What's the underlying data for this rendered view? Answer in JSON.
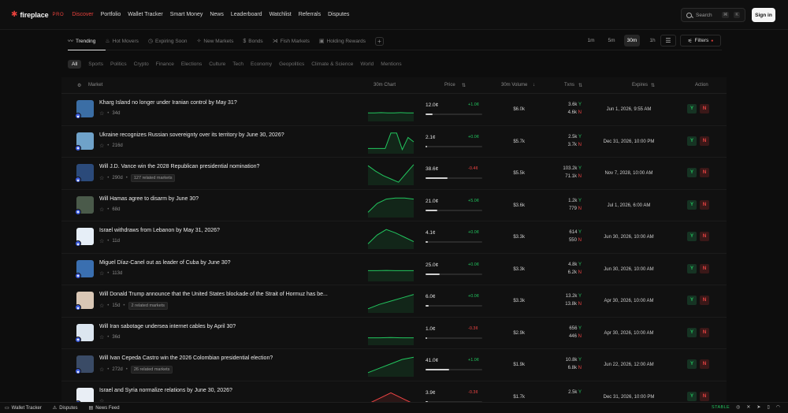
{
  "brand": {
    "name": "fireplace",
    "tier": "PRO",
    "accent": "#e8413c"
  },
  "nav": [
    "Discover",
    "Portfolio",
    "Wallet Tracker",
    "Smart Money",
    "News",
    "Leaderboard",
    "Watchlist",
    "Referrals",
    "Disputes"
  ],
  "search": {
    "placeholder": "Search",
    "shortcut_mod": "⌘",
    "shortcut_key": "K"
  },
  "signin_label": "Sign in",
  "subtabs": [
    "Trending",
    "Hot Movers",
    "Expiring Soon",
    "New Markets",
    "Bonds",
    "Fish Markets",
    "Holding Rewards"
  ],
  "timeframes": [
    "1m",
    "5m",
    "30m",
    "1h"
  ],
  "filters_label": "Filters",
  "categories": [
    "All",
    "Sports",
    "Politics",
    "Crypto",
    "Finance",
    "Elections",
    "Culture",
    "Tech",
    "Economy",
    "Geopolitics",
    "Climate & Science",
    "World",
    "Mentions"
  ],
  "columns": {
    "market": "Market",
    "chart": "30m Chart",
    "price": "Price",
    "volume": "30m Volume",
    "txns": "Txns",
    "expires": "Expires",
    "action": "Action"
  },
  "rows": [
    {
      "title": "Kharg Island no longer under Iranian control by May 31?",
      "age": "34d",
      "related": "",
      "price": "12.0¢",
      "change": "+1.0¢",
      "dir": "up",
      "price_fraction": 0.12,
      "volume": "$6.0k",
      "tx_yes": "3.6k",
      "tx_no": "4.6k",
      "expires": "Jun 1, 2026, 9:55 AM",
      "spark": [
        0.35,
        0.35,
        0.36,
        0.35,
        0.35,
        0.36,
        0.35,
        0.35
      ],
      "spark_color": "#22c55e",
      "thumb": "#3b6ea5"
    },
    {
      "title": "Ukraine recognizes Russian sovereignty over its territory by June 30, 2026?",
      "age": "216d",
      "related": "",
      "price": "2.1¢",
      "change": "+0.0¢",
      "dir": "up",
      "price_fraction": 0.021,
      "volume": "$5.7k",
      "tx_yes": "2.5k",
      "tx_no": "3.7k",
      "expires": "Dec 31, 2026, 10:00 PM",
      "spark": [
        0.2,
        0.2,
        0.2,
        0.2,
        0.9,
        0.9,
        0.15,
        0.7,
        0.5
      ],
      "spark_color": "#22c55e",
      "thumb": "#6fa2c9"
    },
    {
      "title": "Will J.D. Vance win the 2028 Republican presidential nomination?",
      "age": "290d",
      "related": "127 related markets",
      "price": "38.6¢",
      "change": "-0.4¢",
      "dir": "down",
      "price_fraction": 0.386,
      "volume": "$5.5k",
      "tx_yes": "103.2k",
      "tx_no": "71.1k",
      "expires": "Nov 7, 2028, 10:00 AM",
      "spark": [
        0.85,
        0.6,
        0.4,
        0.25,
        0.1,
        0.5,
        0.9
      ],
      "spark_color": "#22c55e",
      "thumb": "#2b4a7a"
    },
    {
      "title": "Will Hamas agree to disarm by June 30?",
      "age": "68d",
      "related": "",
      "price": "21.0¢",
      "change": "+5.0¢",
      "dir": "up",
      "price_fraction": 0.21,
      "volume": "$3.6k",
      "tx_yes": "1.2k",
      "tx_no": "779",
      "expires": "Jul 1, 2026, 6:00 AM",
      "spark": [
        0.2,
        0.6,
        0.8,
        0.85,
        0.85,
        0.8
      ],
      "spark_color": "#22c55e",
      "thumb": "#4a5a4a"
    },
    {
      "title": "Israel withdraws from Lebanon by May 31, 2026?",
      "age": "11d",
      "related": "",
      "price": "4.1¢",
      "change": "+0.0¢",
      "dir": "up",
      "price_fraction": 0.041,
      "volume": "$3.3k",
      "tx_yes": "614",
      "tx_no": "550",
      "expires": "Jun 30, 2026, 10:00 AM",
      "spark": [
        0.2,
        0.6,
        0.85,
        0.7,
        0.5,
        0.3
      ],
      "spark_color": "#22c55e",
      "thumb": "#e6eef7"
    },
    {
      "title": "Miguel Díaz-Canel out as leader of Cuba by June 30?",
      "age": "113d",
      "related": "",
      "price": "25.0¢",
      "change": "+0.0¢",
      "dir": "up",
      "price_fraction": 0.25,
      "volume": "$3.3k",
      "tx_yes": "4.8k",
      "tx_no": "6.2k",
      "expires": "Jun 30, 2026, 10:00 AM",
      "spark": [
        0.45,
        0.45,
        0.46,
        0.45,
        0.45,
        0.45
      ],
      "spark_color": "#22c55e",
      "thumb": "#3a6fb0"
    },
    {
      "title": "Will Donald Trump announce that the United States blockade of the Strait of Hormuz has be...",
      "age": "15d",
      "related": "2 related markets",
      "price": "6.0¢",
      "change": "+0.0¢",
      "dir": "up",
      "price_fraction": 0.06,
      "volume": "$3.3k",
      "tx_yes": "13.2k",
      "tx_no": "13.8k",
      "expires": "Apr 30, 2026, 10:00 AM",
      "spark": [
        0.15,
        0.35,
        0.5,
        0.65,
        0.8
      ],
      "spark_color": "#22c55e",
      "thumb": "#d9c7b5"
    },
    {
      "title": "Will Iran sabotage undersea internet cables by April 30?",
      "age": "36d",
      "related": "",
      "price": "1.0¢",
      "change": "-0.3¢",
      "dir": "down",
      "price_fraction": 0.01,
      "volume": "$2.9k",
      "tx_yes": "656",
      "tx_no": "446",
      "expires": "Apr 30, 2026, 10:00 AM",
      "spark": [
        0.3,
        0.3,
        0.31,
        0.3,
        0.3
      ],
      "spark_color": "#22c55e",
      "thumb": "#dce6f0"
    },
    {
      "title": "Will Ivan Cepeda Castro win the 2026 Colombian presidential election?",
      "age": "272d",
      "related": "26 related markets",
      "price": "41.0¢",
      "change": "+1.0¢",
      "dir": "up",
      "price_fraction": 0.41,
      "volume": "$1.9k",
      "tx_yes": "10.8k",
      "tx_no": "6.8k",
      "expires": "Jun 22, 2026, 12:00 AM",
      "spark": [
        0.15,
        0.35,
        0.55,
        0.75,
        0.85
      ],
      "spark_color": "#22c55e",
      "thumb": "#3a4b66"
    },
    {
      "title": "Israel and Syria normalize relations by June 30, 2026?",
      "age": "",
      "related": "",
      "price": "3.9¢",
      "change": "-0.3¢",
      "dir": "down",
      "price_fraction": 0.039,
      "volume": "$1.7k",
      "tx_yes": "2.5k",
      "tx_no": "",
      "expires": "Dec 31, 2026, 10:00 PM",
      "spark": [
        0.2,
        0.45,
        0.7,
        0.45,
        0.2
      ],
      "spark_color": "#ef4444",
      "thumb": "#e9eef5"
    }
  ],
  "bottombar": {
    "items": [
      "Wallet Tracker",
      "Disputes",
      "News Feed"
    ],
    "status": "STABLE"
  }
}
